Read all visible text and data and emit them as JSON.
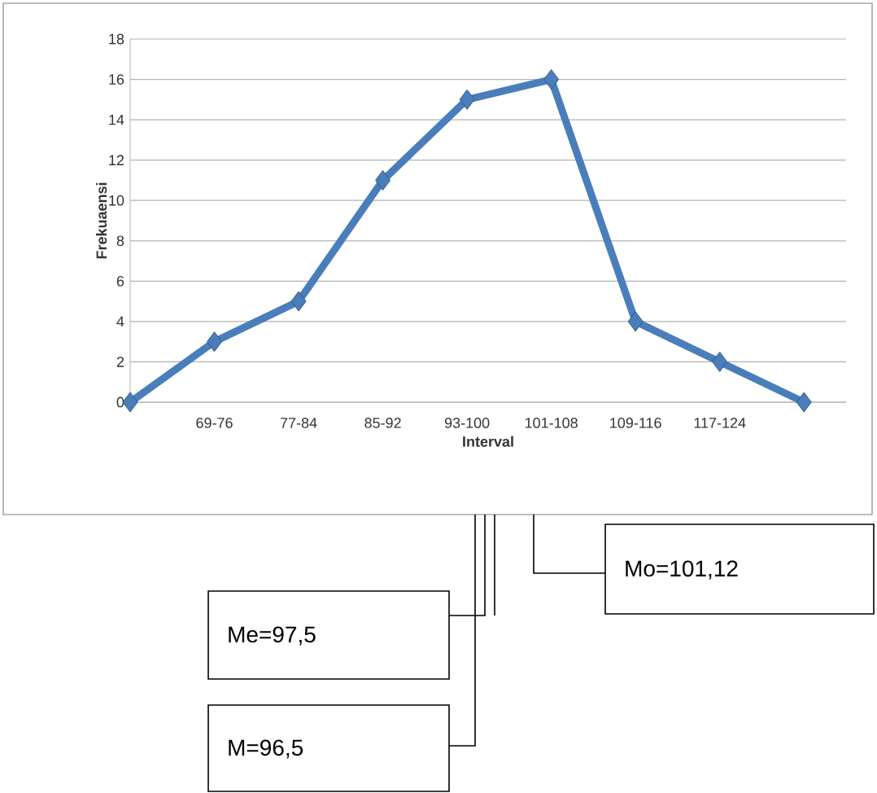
{
  "chart_data": {
    "type": "line",
    "xlabel": "Interval",
    "ylabel": "Frekuaensi",
    "categories": [
      null,
      "69-76",
      "77-84",
      "85-92",
      "93-100",
      "101-108",
      "109-116",
      "117-124",
      null
    ],
    "values": [
      0,
      3,
      5,
      11,
      15,
      16,
      4,
      2,
      0
    ],
    "color": "#4a7ebb",
    "marker": "diamond",
    "line_style": "solid",
    "grid": "y",
    "ylim": [
      0,
      18
    ],
    "yticks": [
      0,
      2,
      4,
      6,
      8,
      10,
      12,
      14,
      16,
      18
    ],
    "annotations": [
      "Mo=101,12",
      "Me=97,5",
      "M=96,5"
    ]
  }
}
